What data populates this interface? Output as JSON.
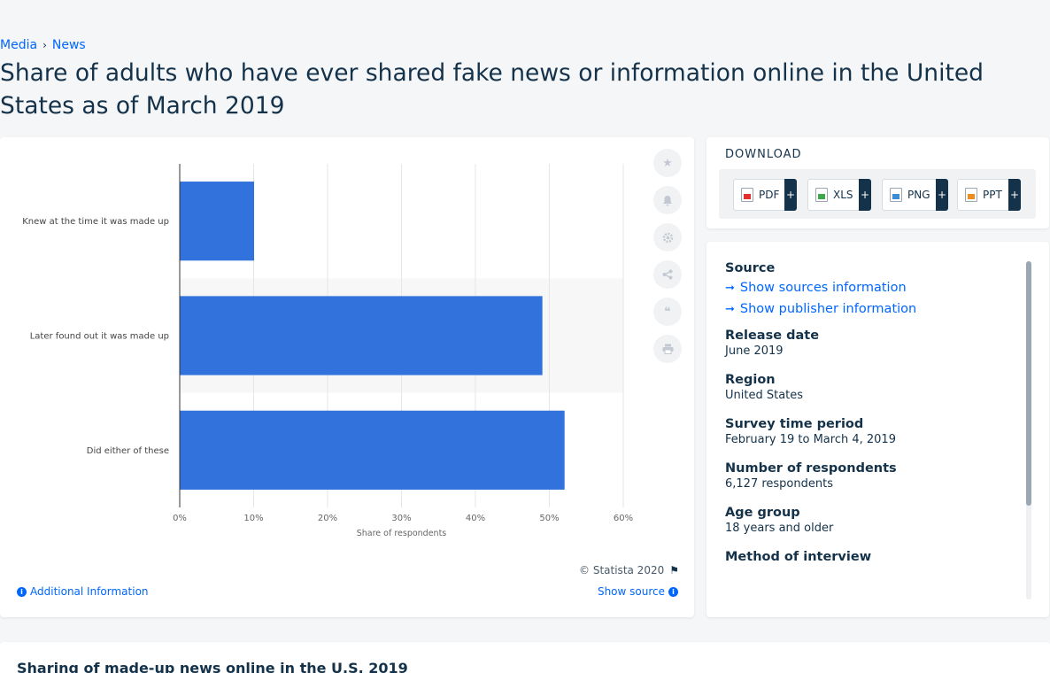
{
  "breadcrumb": {
    "items": [
      "Media",
      "News"
    ]
  },
  "page_title": "Share of adults who have ever shared fake news or information online in the United States as of March 2019",
  "chart_data": {
    "type": "bar",
    "orientation": "horizontal",
    "categories": [
      "Knew at the time it was made up",
      "Later found out it was made up",
      "Did either of these"
    ],
    "values": [
      10,
      49,
      52
    ],
    "value_unit": "%",
    "xlabel": "Share of respondents",
    "xlim": [
      0,
      60
    ],
    "x_ticks": [
      "0%",
      "10%",
      "20%",
      "30%",
      "40%",
      "50%",
      "60%"
    ],
    "grid": true,
    "bar_color": "#3272dd"
  },
  "chart_footer": {
    "copyright": "© Statista 2020",
    "additional_info": "Additional Information",
    "show_source": "Show source"
  },
  "toolbar": {
    "icons": [
      "star-icon",
      "bell-icon",
      "gear-icon",
      "share-icon",
      "quote-icon",
      "print-icon"
    ]
  },
  "download": {
    "heading": "DOWNLOAD",
    "buttons": [
      {
        "label": "PDF",
        "icon": "pdf-file-icon"
      },
      {
        "label": "XLS",
        "icon": "xls-file-icon"
      },
      {
        "label": "PNG",
        "icon": "png-file-icon"
      },
      {
        "label": "PPT",
        "icon": "ppt-file-icon"
      }
    ],
    "plus": "+"
  },
  "meta": {
    "source_label": "Source",
    "show_sources": "Show sources information",
    "show_publisher": "Show publisher information",
    "release_label": "Release date",
    "release_value": "June 2019",
    "region_label": "Region",
    "region_value": "United States",
    "period_label": "Survey time period",
    "period_value": "February 19 to March 4, 2019",
    "respondents_label": "Number of respondents",
    "respondents_value": "6,127 respondents",
    "age_label": "Age group",
    "age_value": "18 years and older",
    "method_label": "Method of interview"
  },
  "bottom": {
    "title": "Sharing of made-up news online in the U.S. 2019"
  }
}
